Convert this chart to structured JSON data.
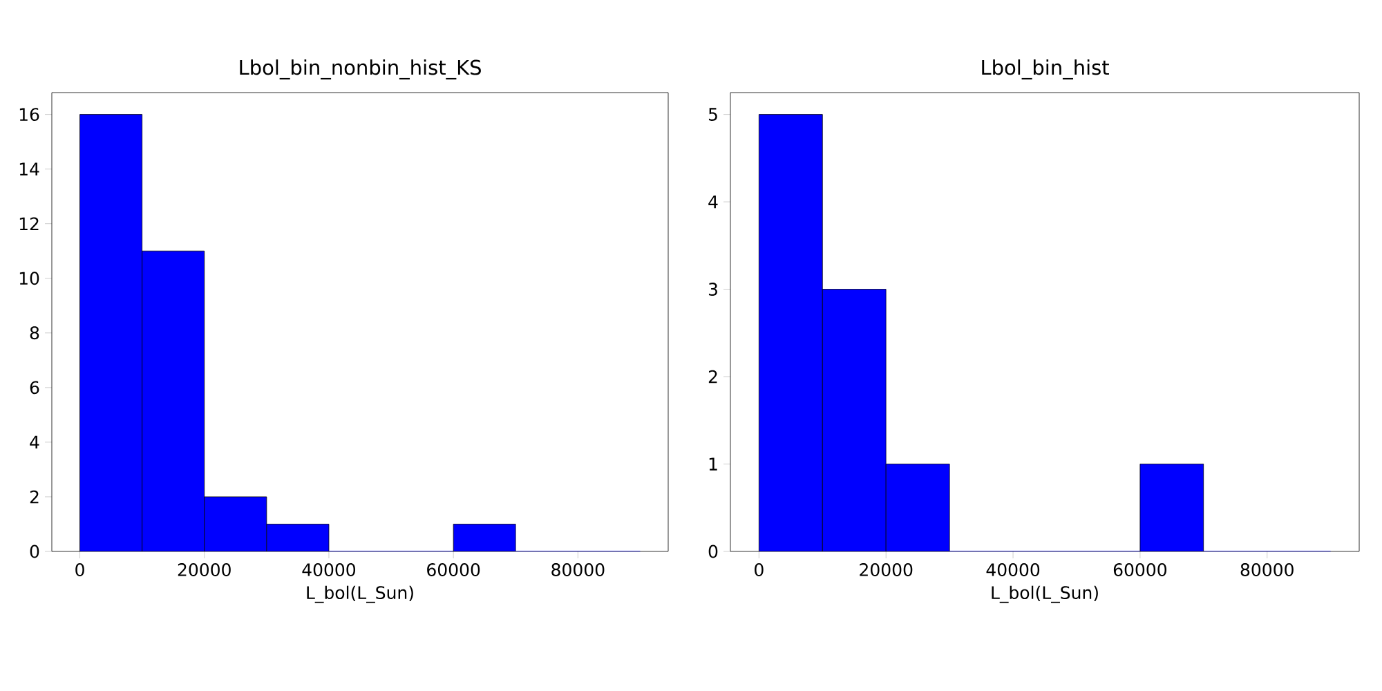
{
  "chart_data": [
    {
      "type": "histogram",
      "title": "Lbol_bin_nonbin_hist_KS",
      "xlabel": "L_bol(L_Sun)",
      "bins": [
        0,
        10000,
        20000,
        30000,
        40000,
        50000,
        60000,
        70000,
        80000,
        90000
      ],
      "values": [
        16,
        11,
        2,
        1,
        0,
        0,
        1,
        0,
        0
      ],
      "color": "#0000ff",
      "xlim": [
        -4500,
        94500
      ],
      "ylim": [
        0,
        16.8
      ],
      "xticks": [
        0,
        20000,
        40000,
        60000,
        80000
      ],
      "yticks": [
        0,
        2,
        4,
        6,
        8,
        10,
        12,
        14,
        16
      ]
    },
    {
      "type": "histogram",
      "title": "Lbol_bin_hist",
      "xlabel": "L_bol(L_Sun)",
      "bins": [
        0,
        10000,
        20000,
        30000,
        40000,
        50000,
        60000,
        70000,
        80000,
        90000
      ],
      "values": [
        5,
        3,
        1,
        0,
        0,
        0,
        1,
        0,
        0
      ],
      "color": "#0000ff",
      "xlim": [
        -4500,
        94500
      ],
      "ylim": [
        0,
        5.25
      ],
      "xticks": [
        0,
        20000,
        40000,
        60000,
        80000
      ],
      "yticks": [
        0,
        1,
        2,
        3,
        4,
        5
      ]
    }
  ]
}
